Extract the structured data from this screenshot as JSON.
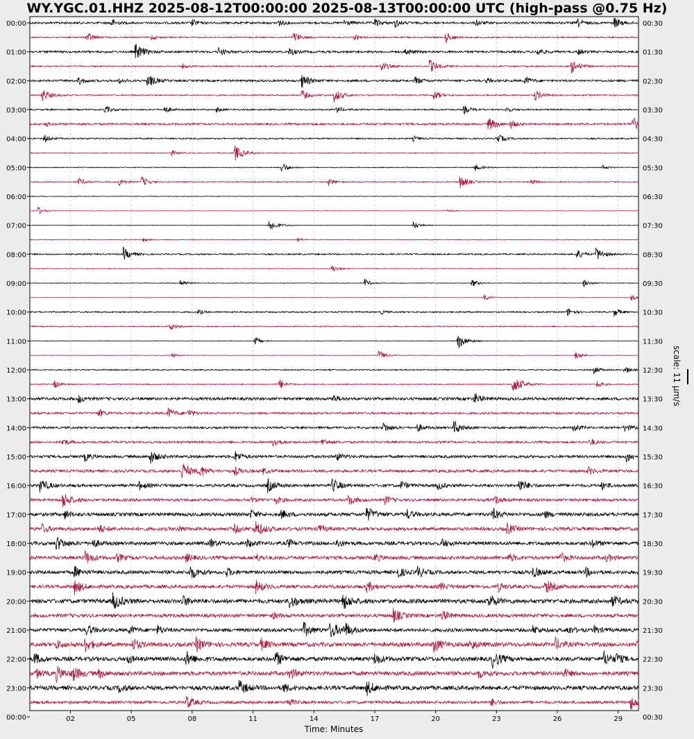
{
  "chart_data": {
    "type": "line",
    "title": "WY.YGC.01.HHZ 2025-08-12T00:00:00 2025-08-13T00:00:00 UTC (high-pass @0.75 Hz)",
    "xlabel": "Time: Minutes",
    "xlim": [
      0,
      30
    ],
    "x_ticks": [
      "02",
      "05",
      "08",
      "11",
      "14",
      "17",
      "20",
      "23",
      "26",
      "29"
    ],
    "x_tick_values": [
      2,
      5,
      8,
      11,
      14,
      17,
      20,
      23,
      26,
      29
    ],
    "left_labels": [
      "00:00",
      "01:00",
      "02:00",
      "03:00",
      "04:00",
      "05:00",
      "06:00",
      "07:00",
      "08:00",
      "09:00",
      "10:00",
      "11:00",
      "12:00",
      "13:00",
      "14:00",
      "15:00",
      "16:00",
      "17:00",
      "18:00",
      "19:00",
      "20:00",
      "21:00",
      "22:00",
      "23:00",
      "00:00"
    ],
    "right_labels": [
      "00:30",
      "01:30",
      "02:30",
      "03:30",
      "04:30",
      "05:30",
      "06:30",
      "07:30",
      "08:30",
      "09:30",
      "10:30",
      "11:30",
      "12:30",
      "13:30",
      "14:30",
      "15:30",
      "16:30",
      "17:30",
      "18:30",
      "19:30",
      "20:30",
      "21:30",
      "22:30",
      "23:30",
      "00:30"
    ],
    "scale_label": "scale: 11 µm/s",
    "trace_colors": [
      "#000000",
      "#a51c3f"
    ],
    "noise_levels": [
      1.5,
      1,
      1.5,
      1,
      1.5,
      1,
      1,
      1.5,
      1,
      0.6,
      0.6,
      0.8,
      0.4,
      0.3,
      0.4,
      0.6,
      1,
      0.5,
      0.4,
      0.3,
      1,
      0.8,
      0.4,
      0.4,
      0.8,
      0.8,
      2,
      1.5,
      1.5,
      1.5,
      2,
      2,
      2,
      2,
      2.5,
      2.5,
      2.5,
      2.5,
      2.5,
      2.5,
      3,
      2.5,
      2.5,
      3,
      3,
      3,
      3,
      2
    ],
    "events": [
      [
        [
          4,
          0.3
        ],
        [
          8,
          0.25
        ],
        [
          12.2,
          0.3
        ],
        [
          15.5,
          0.25
        ],
        [
          17,
          0.3
        ],
        [
          18,
          0.3
        ],
        [
          22,
          0.25
        ],
        [
          27,
          0.3
        ],
        [
          28.8,
          0.4
        ]
      ],
      [
        [
          2.8,
          0.4
        ],
        [
          6,
          0.2
        ],
        [
          13,
          0.4
        ],
        [
          20.5,
          0.4
        ],
        [
          16,
          0.2
        ]
      ],
      [
        [
          5.2,
          0.6
        ],
        [
          9.3,
          0.3
        ],
        [
          12.8,
          0.3
        ],
        [
          18.5,
          0.3
        ],
        [
          25,
          0.3
        ],
        [
          27,
          0.2
        ]
      ],
      [
        [
          7.5,
          0.2
        ],
        [
          17.3,
          0.4
        ],
        [
          19.7,
          0.5
        ],
        [
          26.7,
          0.5
        ]
      ],
      [
        [
          2.4,
          0.3
        ],
        [
          4.4,
          0.2
        ],
        [
          5.8,
          0.5
        ],
        [
          13.4,
          0.5
        ],
        [
          19,
          0.3
        ],
        [
          22.5,
          0.2
        ],
        [
          24.4,
          0.3
        ]
      ],
      [
        [
          0.6,
          0.5
        ],
        [
          13.4,
          0.4
        ],
        [
          15,
          0.5
        ],
        [
          19.9,
          0.4
        ],
        [
          24.9,
          0.4
        ]
      ],
      [
        [
          3.7,
          0.3
        ],
        [
          6.6,
          0.3
        ],
        [
          9.2,
          0.2
        ],
        [
          15.1,
          0.3
        ],
        [
          21.4,
          0.3
        ],
        [
          23.5,
          0.2
        ]
      ],
      [
        [
          0.8,
          0.15
        ],
        [
          22.6,
          0.5
        ],
        [
          23.7,
          0.3
        ],
        [
          29.7,
          0.5
        ]
      ],
      [
        [
          0.7,
          0.3
        ],
        [
          18.9,
          0.2
        ],
        [
          23,
          0.4
        ]
      ],
      [
        [
          7,
          0.2
        ],
        [
          10.1,
          0.6
        ]
      ],
      [
        [
          12.4,
          0.4
        ],
        [
          21.9,
          0.3
        ],
        [
          28.2,
          0.2
        ]
      ],
      [
        [
          2.4,
          0.3
        ],
        [
          4.4,
          0.3
        ],
        [
          5.5,
          0.4
        ],
        [
          14.7,
          0.3
        ],
        [
          21.2,
          0.5
        ],
        [
          24.7,
          0.2
        ]
      ],
      [],
      [
        [
          0.4,
          0.3
        ],
        [
          20.6,
          0.15
        ]
      ],
      [
        [
          11.8,
          0.5
        ],
        [
          18.9,
          0.3
        ]
      ],
      [
        [
          5.6,
          0.15
        ],
        [
          13.2,
          0.15
        ]
      ],
      [
        [
          4.6,
          0.5
        ],
        [
          26.9,
          0.4
        ],
        [
          27.9,
          0.5
        ]
      ],
      [
        [
          14.9,
          0.3
        ]
      ],
      [
        [
          7.4,
          0.3
        ],
        [
          16.5,
          0.3
        ],
        [
          21.8,
          0.3
        ],
        [
          27.3,
          0.3
        ]
      ],
      [
        [
          22.4,
          0.25
        ],
        [
          29.6,
          0.3
        ]
      ],
      [
        [
          8.3,
          0.2
        ],
        [
          17.3,
          0.15
        ],
        [
          26.5,
          0.3
        ],
        [
          28.8,
          0.3
        ]
      ],
      [
        [
          6.9,
          0.3
        ]
      ],
      [
        [
          11.1,
          0.3
        ],
        [
          21.1,
          0.6
        ]
      ],
      [
        [
          7,
          0.2
        ],
        [
          17.2,
          0.4
        ],
        [
          26.9,
          0.3
        ]
      ],
      [
        [
          27.8,
          0.3
        ],
        [
          29.3,
          0.3
        ]
      ],
      [
        [
          1.2,
          0.3
        ],
        [
          12.3,
          0.4
        ],
        [
          23.8,
          0.7
        ],
        [
          27.9,
          0.3
        ]
      ],
      [
        [
          2.4,
          0.3
        ],
        [
          14.9,
          0.3
        ],
        [
          21.9,
          0.4
        ]
      ],
      [
        [
          3.4,
          0.3
        ],
        [
          6.8,
          0.4
        ],
        [
          7.8,
          0.3
        ]
      ],
      [
        [
          17.4,
          0.4
        ],
        [
          19.1,
          0.3
        ],
        [
          20.9,
          0.5
        ],
        [
          26.8,
          0.3
        ],
        [
          29.3,
          0.3
        ]
      ],
      [
        [
          1.6,
          0.3
        ],
        [
          12,
          0.4
        ],
        [
          14.4,
          0.3
        ],
        [
          27.6,
          0.3
        ]
      ],
      [
        [
          2.7,
          0.3
        ],
        [
          5.9,
          0.5
        ],
        [
          10.1,
          0.4
        ],
        [
          15.1,
          0.3
        ],
        [
          29.4,
          0.4
        ]
      ],
      [
        [
          7.5,
          0.6
        ],
        [
          8.4,
          0.4
        ],
        [
          10.1,
          0.3
        ],
        [
          11.5,
          0.2
        ],
        [
          27.5,
          0.3
        ]
      ],
      [
        [
          0.5,
          0.5
        ],
        [
          5.4,
          0.3
        ],
        [
          11.7,
          0.5
        ],
        [
          14.9,
          0.5
        ],
        [
          18.3,
          0.3
        ],
        [
          20.1,
          0.3
        ],
        [
          24.1,
          0.5
        ],
        [
          28.2,
          0.3
        ]
      ],
      [
        [
          1.6,
          0.6
        ],
        [
          10.9,
          0.2
        ],
        [
          12.1,
          0.3
        ],
        [
          15.7,
          0.4
        ],
        [
          17.5,
          0.3
        ],
        [
          22.9,
          0.3
        ]
      ],
      [
        [
          1.7,
          0.3
        ],
        [
          10.9,
          0.3
        ],
        [
          12.4,
          0.3
        ],
        [
          16.6,
          0.5
        ],
        [
          18.6,
          0.3
        ],
        [
          22.8,
          0.4
        ],
        [
          25.3,
          0.3
        ]
      ],
      [
        [
          0.6,
          0.3
        ],
        [
          3.4,
          0.3
        ],
        [
          7.3,
          0.2
        ],
        [
          10.1,
          0.3
        ],
        [
          11.1,
          0.6
        ],
        [
          14.2,
          0.3
        ],
        [
          23.5,
          0.4
        ]
      ],
      [
        [
          1.3,
          0.5
        ],
        [
          3.1,
          0.3
        ],
        [
          8.9,
          0.3
        ],
        [
          10.7,
          0.3
        ],
        [
          12.7,
          0.3
        ],
        [
          15.1,
          0.3
        ],
        [
          20.3,
          0.3
        ],
        [
          27.7,
          0.3
        ]
      ],
      [
        [
          2.7,
          0.5
        ],
        [
          4.3,
          0.3
        ],
        [
          7.7,
          0.3
        ],
        [
          11.1,
          0.3
        ],
        [
          17,
          0.3
        ],
        [
          23.6,
          0.3
        ],
        [
          26.1,
          0.4
        ],
        [
          28.4,
          0.3
        ]
      ],
      [
        [
          2.2,
          0.4
        ],
        [
          7.9,
          0.5
        ],
        [
          9.7,
          0.3
        ],
        [
          18.1,
          0.4
        ],
        [
          19.1,
          0.4
        ],
        [
          24.8,
          0.4
        ],
        [
          27.4,
          0.3
        ]
      ],
      [
        [
          2.2,
          0.5
        ],
        [
          11.1,
          0.5
        ],
        [
          16.6,
          0.4
        ],
        [
          20.2,
          0.3
        ],
        [
          23.1,
          0.3
        ],
        [
          25.4,
          0.5
        ]
      ],
      [
        [
          4.1,
          0.6
        ],
        [
          7.5,
          0.4
        ],
        [
          12.8,
          0.5
        ],
        [
          15.4,
          0.6
        ],
        [
          22.6,
          0.5
        ],
        [
          28.7,
          0.4
        ]
      ],
      [
        [
          12,
          0.2
        ],
        [
          17.9,
          0.5
        ],
        [
          20.3,
          0.4
        ]
      ],
      [
        [
          2.8,
          0.4
        ],
        [
          4.9,
          0.3
        ],
        [
          6.3,
          0.3
        ],
        [
          13.5,
          0.5
        ],
        [
          14.8,
          0.6
        ],
        [
          15.5,
          0.5
        ],
        [
          24.8,
          0.3
        ],
        [
          26.5,
          0.3
        ],
        [
          27.8,
          0.3
        ]
      ],
      [
        [
          1.3,
          0.3
        ],
        [
          2.7,
          0.5
        ],
        [
          5.1,
          0.4
        ],
        [
          8.2,
          0.5
        ],
        [
          11.4,
          0.4
        ],
        [
          19.9,
          0.5
        ],
        [
          21.7,
          0.4
        ],
        [
          25.9,
          0.4
        ],
        [
          29.9,
          0.5
        ]
      ],
      [
        [
          0.2,
          0.4
        ],
        [
          4.8,
          0.3
        ],
        [
          7.7,
          0.5
        ],
        [
          12.1,
          0.5
        ],
        [
          17,
          0.4
        ],
        [
          22.8,
          0.6
        ],
        [
          28.3,
          0.5
        ],
        [
          28.9,
          0.3
        ]
      ],
      [
        [
          0.3,
          0.3
        ],
        [
          1.3,
          0.5
        ],
        [
          2.1,
          0.5
        ],
        [
          3.4,
          0.3
        ],
        [
          12.8,
          0.4
        ],
        [
          22.1,
          0.3
        ],
        [
          26.3,
          0.3
        ]
      ],
      [
        [
          4.4,
          0.3
        ],
        [
          10.3,
          0.5
        ],
        [
          12.5,
          0.3
        ],
        [
          16.6,
          0.5
        ]
      ],
      [
        [
          7.7,
          0.5
        ],
        [
          12.7,
          0.3
        ],
        [
          22.7,
          0.3
        ],
        [
          29.6,
          0.5
        ]
      ]
    ]
  }
}
